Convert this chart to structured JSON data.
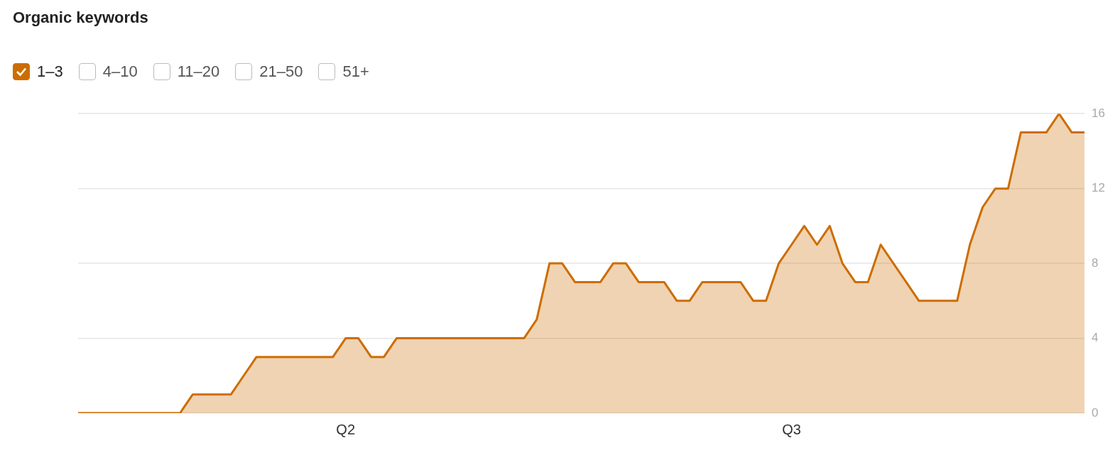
{
  "chart_data": {
    "type": "area",
    "title": "Organic keywords",
    "categories": [
      null,
      null,
      null,
      null,
      null,
      null,
      null,
      null,
      null,
      null,
      null,
      null,
      null,
      null,
      null,
      null,
      null,
      null,
      null,
      null,
      null,
      "Q2",
      null,
      null,
      null,
      null,
      null,
      null,
      null,
      null,
      null,
      null,
      null,
      null,
      null,
      null,
      null,
      null,
      null,
      null,
      null,
      null,
      null,
      null,
      null,
      null,
      null,
      null,
      null,
      null,
      null,
      null,
      null,
      null,
      null,
      null,
      "Q3",
      null,
      null,
      null,
      null,
      null,
      null,
      null,
      null,
      null,
      null,
      null,
      null,
      null,
      null,
      null,
      null,
      null,
      null,
      null,
      null,
      null,
      null,
      null
    ],
    "series": [
      {
        "name": "1–3",
        "color": "#cc6d00",
        "values": [
          0,
          0,
          0,
          0,
          0,
          0,
          0,
          0,
          0,
          1,
          1,
          1,
          1,
          2,
          3,
          3,
          3,
          3,
          3,
          3,
          3,
          4,
          4,
          3,
          3,
          4,
          4,
          4,
          4,
          4,
          4,
          4,
          4,
          4,
          4,
          4,
          5,
          8,
          8,
          7,
          7,
          7,
          8,
          8,
          7,
          7,
          7,
          6,
          6,
          7,
          7,
          7,
          7,
          6,
          6,
          8,
          9,
          10,
          9,
          10,
          8,
          7,
          7,
          9,
          8,
          7,
          6,
          6,
          6,
          6,
          9,
          11,
          12,
          12,
          15,
          15,
          15,
          16,
          15,
          15
        ]
      },
      {
        "name": "4–10",
        "color": "#bbbbbb",
        "values": [
          null,
          null,
          null,
          null,
          null,
          null,
          null,
          null,
          null,
          null,
          null,
          null,
          null,
          null,
          null,
          null,
          null,
          null,
          null,
          null,
          null,
          null,
          null,
          null,
          null,
          null,
          null,
          null,
          null,
          null,
          null,
          null,
          null,
          null,
          null,
          null,
          null,
          null,
          null,
          null,
          null,
          null,
          null,
          null,
          null,
          null,
          null,
          null,
          null,
          null,
          null,
          null,
          null,
          null,
          null,
          null,
          null,
          null,
          null,
          null,
          null,
          null,
          null,
          null,
          null,
          null,
          null,
          null,
          null,
          null,
          null,
          null,
          null,
          null,
          null,
          null,
          null,
          null,
          null,
          null
        ]
      },
      {
        "name": "11–20",
        "color": "#bbbbbb",
        "values": [
          null,
          null,
          null,
          null,
          null,
          null,
          null,
          null,
          null,
          null,
          null,
          null,
          null,
          null,
          null,
          null,
          null,
          null,
          null,
          null,
          null,
          null,
          null,
          null,
          null,
          null,
          null,
          null,
          null,
          null,
          null,
          null,
          null,
          null,
          null,
          null,
          null,
          null,
          null,
          null,
          null,
          null,
          null,
          null,
          null,
          null,
          null,
          null,
          null,
          null,
          null,
          null,
          null,
          null,
          null,
          null,
          null,
          null,
          null,
          null,
          null,
          null,
          null,
          null,
          null,
          null,
          null,
          null,
          null,
          null,
          null,
          null,
          null,
          null,
          null,
          null,
          null,
          null,
          null,
          null
        ]
      },
      {
        "name": "21–50",
        "color": "#bbbbbb",
        "values": [
          null,
          null,
          null,
          null,
          null,
          null,
          null,
          null,
          null,
          null,
          null,
          null,
          null,
          null,
          null,
          null,
          null,
          null,
          null,
          null,
          null,
          null,
          null,
          null,
          null,
          null,
          null,
          null,
          null,
          null,
          null,
          null,
          null,
          null,
          null,
          null,
          null,
          null,
          null,
          null,
          null,
          null,
          null,
          null,
          null,
          null,
          null,
          null,
          null,
          null,
          null,
          null,
          null,
          null,
          null,
          null,
          null,
          null,
          null,
          null,
          null,
          null,
          null,
          null,
          null,
          null,
          null,
          null,
          null,
          null,
          null,
          null,
          null,
          null,
          null,
          null,
          null,
          null,
          null,
          null
        ]
      },
      {
        "name": "51+",
        "color": "#bbbbbb",
        "values": [
          null,
          null,
          null,
          null,
          null,
          null,
          null,
          null,
          null,
          null,
          null,
          null,
          null,
          null,
          null,
          null,
          null,
          null,
          null,
          null,
          null,
          null,
          null,
          null,
          null,
          null,
          null,
          null,
          null,
          null,
          null,
          null,
          null,
          null,
          null,
          null,
          null,
          null,
          null,
          null,
          null,
          null,
          null,
          null,
          null,
          null,
          null,
          null,
          null,
          null,
          null,
          null,
          null,
          null,
          null,
          null,
          null,
          null,
          null,
          null,
          null,
          null,
          null,
          null,
          null,
          null,
          null,
          null,
          null,
          null,
          null,
          null,
          null,
          null,
          null,
          null,
          null,
          null,
          null,
          null
        ]
      }
    ],
    "ylim": [
      0,
      16
    ],
    "yticks": [
      0,
      4,
      8,
      12,
      16
    ],
    "grid": "y",
    "legend": "top left",
    "marker": "none",
    "line_style": "solid"
  }
}
